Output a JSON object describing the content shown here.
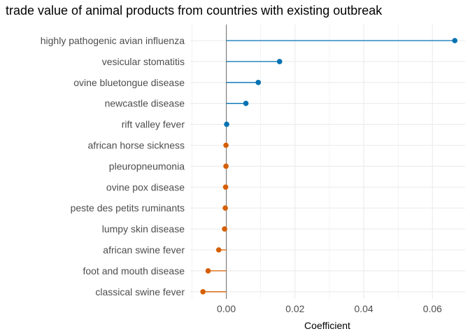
{
  "chart_data": {
    "type": "lollipop",
    "title": "trade value of animal products from countries with existing outbreak",
    "xlabel": "Coefficient",
    "ylabel": "",
    "xlim": [
      -0.0105,
      0.0695
    ],
    "xticks": [
      0.0,
      0.02,
      0.04,
      0.06
    ],
    "xtick_labels": [
      "0.00",
      "0.02",
      "0.04",
      "0.06"
    ],
    "grid": true,
    "legend": "none",
    "reference_line": 0,
    "colors": {
      "positive": "#0072b2",
      "negative": "#d55e00",
      "zero_line": "#808080",
      "grid": "#ebebeb"
    },
    "categories": [
      "highly pathogenic avian influenza",
      "vesicular stomatitis",
      "ovine bluetongue disease",
      "newcastle disease",
      "rift valley fever",
      "african horse sickness",
      "pleuropneumonia",
      "ovine pox disease",
      "peste des petits ruminants",
      "lumpy skin disease",
      "african swine fever",
      "foot and mouth disease",
      "classical swine fever"
    ],
    "values": [
      0.0665,
      0.0155,
      0.0093,
      0.0057,
      0.0001,
      -0.0001,
      -0.0001,
      -0.0002,
      -0.0003,
      -0.0005,
      -0.0022,
      -0.0053,
      -0.0068
    ]
  }
}
